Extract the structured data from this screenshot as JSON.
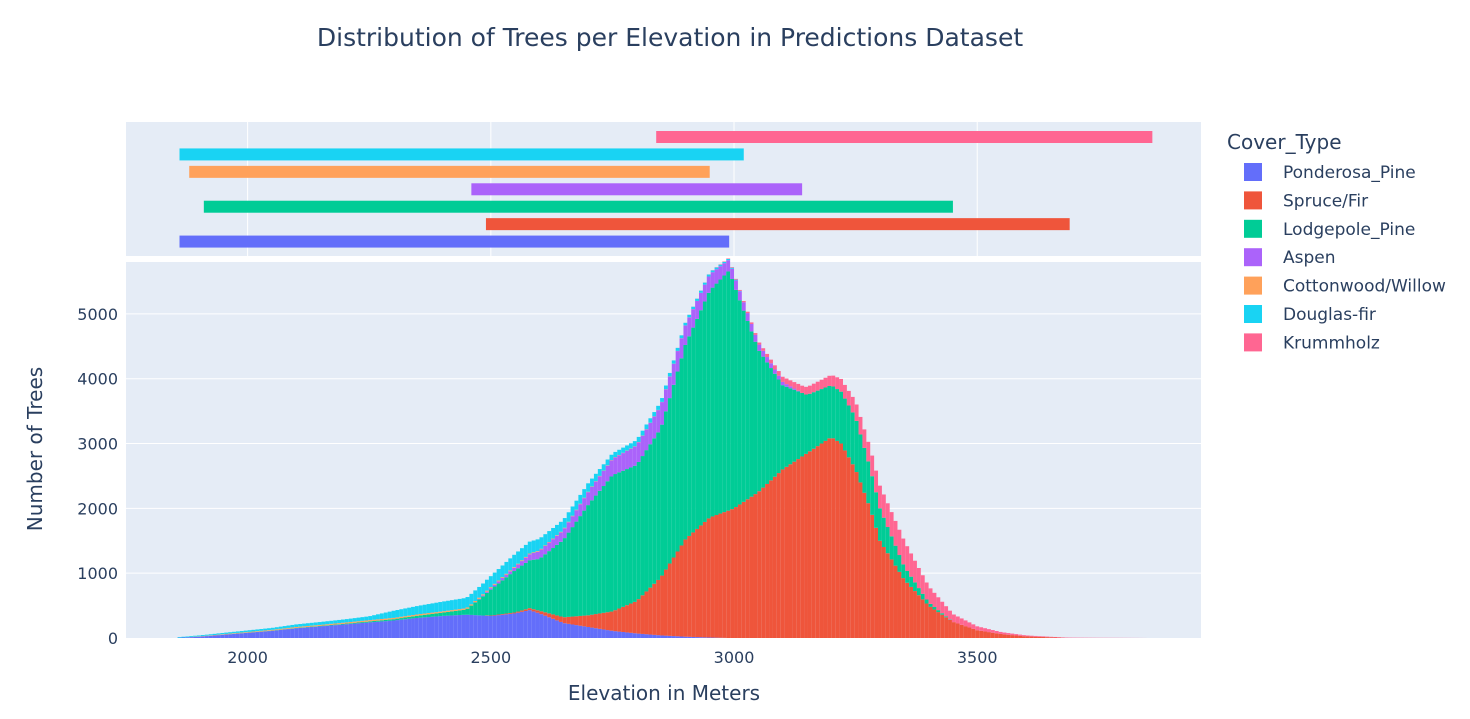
{
  "chart_data": {
    "type": "bar",
    "subtype": "stacked-histogram-with-rug",
    "title": "Distribution of Trees per Elevation in Predictions Dataset",
    "xlabel": "Elevation in Meters",
    "ylabel": "Number of Trees",
    "xlim": [
      1750,
      3960
    ],
    "ylim": [
      0,
      5800
    ],
    "x_ticks": [
      2000,
      2500,
      3000,
      3500
    ],
    "y_ticks": [
      0,
      1000,
      2000,
      3000,
      4000,
      5000
    ],
    "grid": true,
    "legend_title": "Cover_Type",
    "legend_position": "right",
    "series": [
      {
        "name": "Ponderosa_Pine",
        "color": "#636efa",
        "x": [
          1860,
          1900,
          1950,
          2000,
          2050,
          2100,
          2150,
          2200,
          2250,
          2300,
          2350,
          2400,
          2450,
          2500,
          2550,
          2580,
          2600,
          2620,
          2650,
          2700,
          2750,
          2800,
          2850,
          2900,
          2950,
          2990
        ],
        "values": [
          5,
          20,
          50,
          80,
          110,
          150,
          180,
          210,
          240,
          270,
          310,
          340,
          360,
          340,
          380,
          430,
          380,
          320,
          230,
          170,
          110,
          70,
          40,
          20,
          8,
          0
        ]
      },
      {
        "name": "Spruce/Fir",
        "color": "#ef553b",
        "x": [
          2490,
          2550,
          2600,
          2650,
          2700,
          2750,
          2800,
          2850,
          2900,
          2950,
          3000,
          3050,
          3100,
          3150,
          3200,
          3220,
          3250,
          3280,
          3300,
          3350,
          3400,
          3450,
          3500,
          3550,
          3600,
          3690
        ],
        "values": [
          5,
          15,
          40,
          90,
          180,
          300,
          500,
          900,
          1500,
          1850,
          2000,
          2250,
          2600,
          2850,
          3100,
          3000,
          2600,
          2000,
          1500,
          900,
          500,
          250,
          120,
          60,
          25,
          0
        ]
      },
      {
        "name": "Lodgepole_Pine",
        "color": "#00cc96",
        "x": [
          1910,
          2000,
          2100,
          2200,
          2300,
          2400,
          2450,
          2500,
          2550,
          2600,
          2650,
          2700,
          2750,
          2800,
          2850,
          2900,
          2950,
          2990,
          3050,
          3100,
          3150,
          3200,
          3250,
          3300,
          3350,
          3400,
          3450
        ],
        "values": [
          0,
          2,
          5,
          10,
          20,
          50,
          80,
          400,
          650,
          800,
          1200,
          1700,
          2100,
          2100,
          2300,
          3000,
          3500,
          3700,
          2200,
          1300,
          900,
          800,
          800,
          500,
          200,
          50,
          0
        ]
      },
      {
        "name": "Aspen",
        "color": "#ab63fa",
        "x": [
          2460,
          2550,
          2600,
          2650,
          2700,
          2750,
          2800,
          2850,
          2900,
          2950,
          3000,
          3050,
          3100,
          3140
        ],
        "values": [
          0,
          50,
          120,
          150,
          200,
          250,
          300,
          350,
          300,
          250,
          150,
          100,
          50,
          0
        ]
      },
      {
        "name": "Cottonwood/Willow",
        "color": "#ffa15a",
        "x": [
          1880,
          1950,
          2000,
          2050,
          2100,
          2150,
          2200,
          2250,
          2300,
          2350,
          2400,
          2450,
          2500,
          2550,
          2600,
          2650,
          2700,
          2750,
          2800,
          2850,
          2900,
          2950
        ],
        "values": [
          3,
          8,
          10,
          12,
          15,
          15,
          18,
          20,
          20,
          20,
          20,
          20,
          15,
          12,
          10,
          8,
          6,
          5,
          4,
          3,
          2,
          0
        ]
      },
      {
        "name": "Douglas-fir",
        "color": "#19d3f3",
        "x": [
          1860,
          1900,
          1950,
          2000,
          2050,
          2100,
          2150,
          2200,
          2250,
          2300,
          2350,
          2400,
          2450,
          2500,
          2550,
          2600,
          2650,
          2700,
          2750,
          2800,
          2850,
          2900,
          2950,
          3000,
          3020
        ],
        "values": [
          10,
          15,
          20,
          25,
          30,
          40,
          45,
          50,
          60,
          110,
          130,
          150,
          160,
          170,
          190,
          180,
          150,
          130,
          80,
          80,
          60,
          40,
          30,
          15,
          0
        ]
      },
      {
        "name": "Krummholz",
        "color": "#ff6692",
        "x": [
          2840,
          2950,
          3000,
          3050,
          3100,
          3150,
          3200,
          3250,
          3300,
          3350,
          3400,
          3450,
          3500,
          3550,
          3600,
          3650,
          3700,
          3750,
          3800,
          3860
        ],
        "values": [
          0,
          2,
          10,
          30,
          80,
          120,
          160,
          250,
          350,
          400,
          250,
          120,
          60,
          30,
          15,
          8,
          5,
          3,
          2,
          0
        ]
      }
    ]
  }
}
